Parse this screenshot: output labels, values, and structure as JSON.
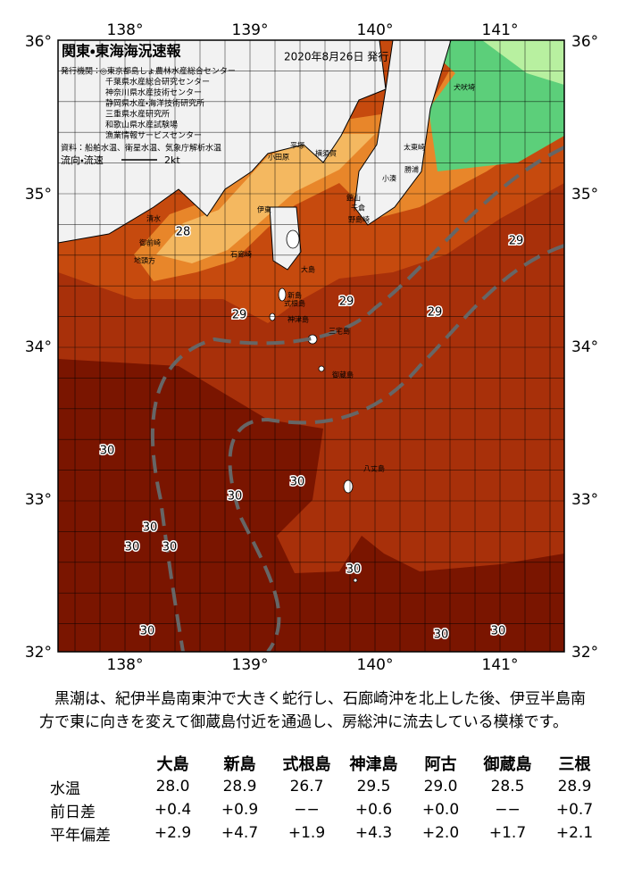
{
  "map": {
    "title": "関東・東海海況速報",
    "issued": "2020年8月26日 発行",
    "agencies_label": "発行機関：",
    "agencies": [
      "◎東京都島しょ農林水産総合センター",
      "千葉県水産総合研究センター",
      "神奈川県水産技術センター",
      "静岡県水産・海洋技術研究所",
      "三重県水産研究所",
      "和歌山県水産試験場",
      "漁業情報サービスセンター"
    ],
    "sources": "資料：船舶水温、衛星水温、気象庁解析水温",
    "flow_label": "流向・流速",
    "flow_scale": "2kt",
    "lon_labels": [
      "138°",
      "139°",
      "140°",
      "141°"
    ],
    "lat_labels": [
      "36°",
      "35°",
      "34°",
      "33°",
      "32°"
    ],
    "places": [
      "犬吠埼",
      "太東崎",
      "勝浦",
      "小湊",
      "館山",
      "千倉",
      "野島崎",
      "平塚",
      "横須賀",
      "小田原",
      "伊東",
      "石廊崎",
      "清水",
      "御前崎",
      "地頭方",
      "大島",
      "新島",
      "式根島",
      "神津島",
      "三宅島",
      "御蔵島",
      "八丈島"
    ],
    "temperature_labels": [
      "28",
      "29",
      "29",
      "29",
      "29",
      "30",
      "30",
      "30",
      "30",
      "30",
      "30",
      "30",
      "30",
      "30",
      "30"
    ]
  },
  "summary": "黒潮は、紀伊半島南東沖で大きく蛇行し、石廊崎沖を北上した後、伊豆半島南方で東に向きを変えて御蔵島付近を通過し、房総沖に流去している模様です。",
  "table": {
    "header": [
      "大島",
      "新島",
      "式根島",
      "神津島",
      "阿古",
      "御蔵島",
      "三根"
    ],
    "rows": [
      [
        "水温",
        "28.0",
        "28.9",
        "26.7",
        "29.5",
        "29.0",
        "28.5",
        "28.9"
      ],
      [
        "前日差",
        "+0.4",
        "+0.9",
        "−−",
        "+0.6",
        "+0.0",
        "−−",
        "+0.7"
      ],
      [
        "平年偏差",
        "+2.9",
        "+4.7",
        "+1.9",
        "+4.3",
        "+2.0",
        "+1.7",
        "+2.1"
      ]
    ]
  }
}
